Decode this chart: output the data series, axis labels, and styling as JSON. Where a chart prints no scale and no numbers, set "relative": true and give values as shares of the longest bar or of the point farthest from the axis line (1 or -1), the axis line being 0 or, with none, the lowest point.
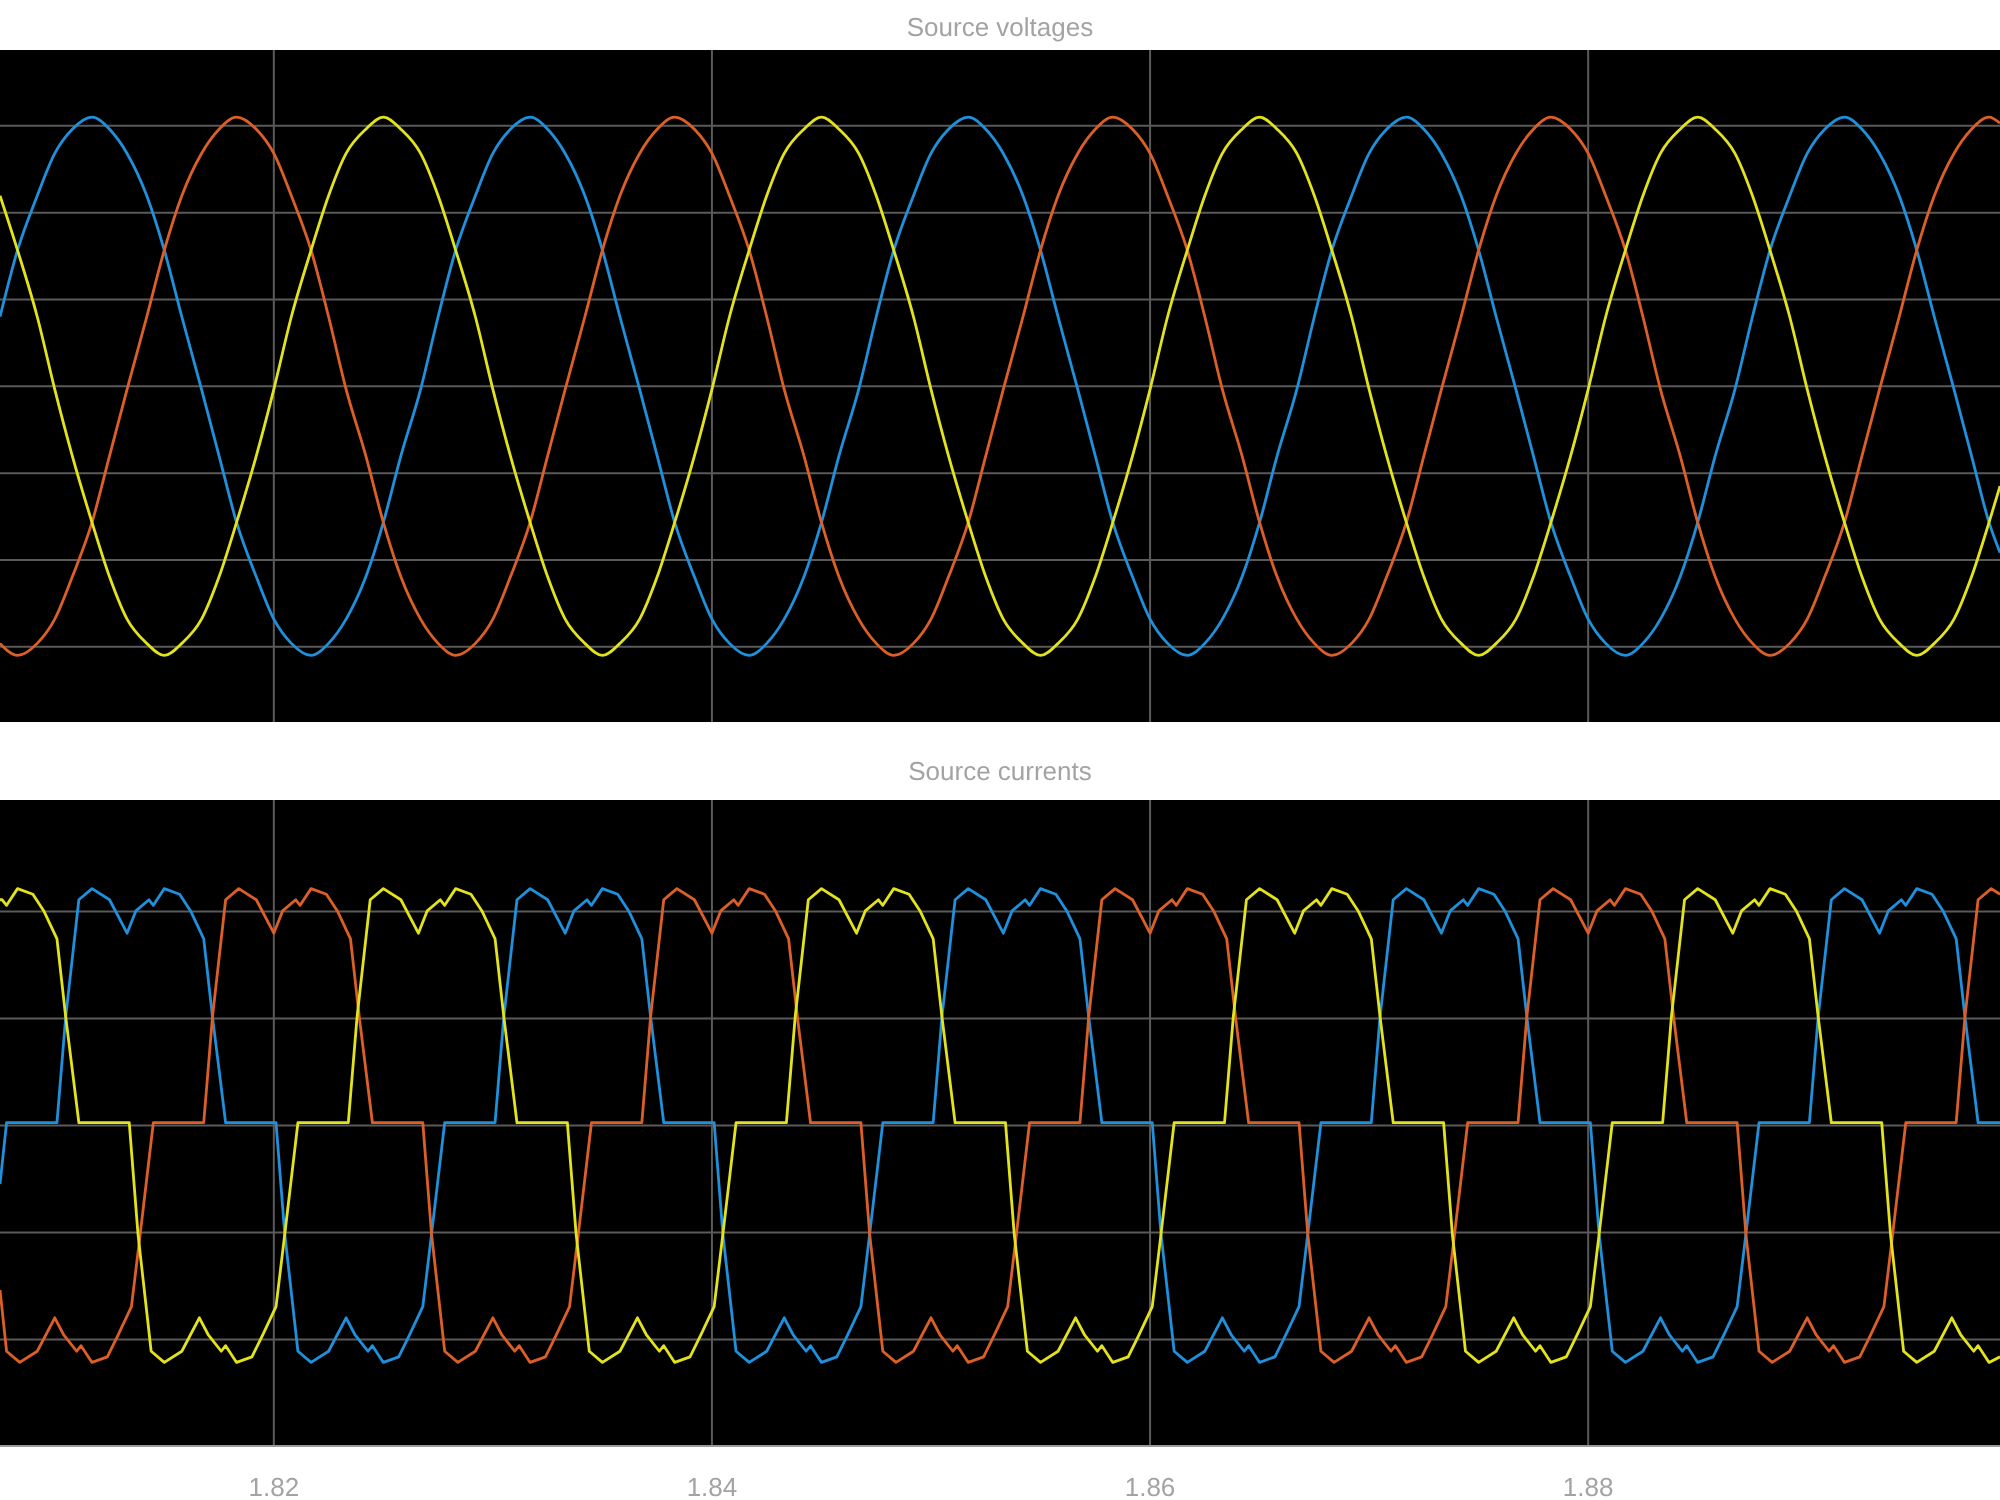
{
  "chart_data": [
    {
      "type": "line",
      "title": "Source voltages",
      "relative": true,
      "xlim": [
        1.8075,
        1.8988
      ],
      "xticks": [
        1.82,
        1.84,
        1.86,
        1.88
      ],
      "tick_labels": false,
      "grid": true,
      "x": [
        1.8075,
        1.8083,
        1.8092,
        1.81,
        1.8108,
        1.8117,
        1.8125,
        1.8133,
        1.8142,
        1.815,
        1.8158,
        1.8167,
        1.8175,
        1.8183,
        1.8192,
        1.82,
        1.8208,
        1.8217,
        1.8225,
        1.8233,
        1.8242,
        1.825,
        1.8258,
        1.8267,
        1.8275,
        1.8283,
        1.8292,
        1.83,
        1.8308,
        1.8317,
        1.8325,
        1.8333,
        1.8342,
        1.835,
        1.8358,
        1.8367,
        1.8375,
        1.8383,
        1.8392,
        1.84,
        1.8408,
        1.8417,
        1.8425,
        1.8433,
        1.8442,
        1.845,
        1.8458,
        1.8467,
        1.8475,
        1.8483,
        1.8492,
        1.85,
        1.8508,
        1.8517,
        1.8525,
        1.8533,
        1.8542,
        1.855,
        1.8558,
        1.8567,
        1.8575,
        1.8583,
        1.8592,
        1.86,
        1.8608,
        1.8617,
        1.8625,
        1.8633,
        1.8642,
        1.865,
        1.8658,
        1.8667,
        1.8675,
        1.8683,
        1.8692,
        1.87,
        1.8708,
        1.8717,
        1.8725,
        1.8733,
        1.8742,
        1.875,
        1.8758,
        1.8767,
        1.8775,
        1.8783,
        1.8792,
        1.88,
        1.8808,
        1.8817,
        1.8825,
        1.8833,
        1.8842,
        1.885,
        1.8858,
        1.8867,
        1.8875,
        1.8883,
        1.8892,
        1.89,
        1.8908,
        1.8917,
        1.8925,
        1.8933,
        1.8942,
        1.895,
        1.8958,
        1.8967,
        1.8975,
        1.8983,
        1.8988
      ],
      "series": [
        {
          "color": "#1e90dc",
          "values": [
            0.67,
            0.78,
            0.87,
            0.94,
            0.98,
            1,
            0.98,
            0.94,
            0.87,
            0.78,
            0.67,
            0.55,
            0.44,
            0.33,
            0.24,
            0.17,
            0.13,
            0.11,
            0.13,
            0.17,
            0.24,
            0.33,
            0.44,
            0.55,
            0.67,
            0.78,
            0.87,
            0.94,
            0.98,
            1,
            0.98,
            0.94,
            0.87,
            0.78,
            0.67,
            0.55,
            0.44,
            0.33,
            0.24,
            0.17,
            0.13,
            0.11,
            0.13,
            0.17,
            0.24,
            0.33,
            0.44,
            0.55,
            0.67,
            0.78,
            0.87,
            0.94,
            0.98,
            1,
            0.98,
            0.94,
            0.87,
            0.78,
            0.67,
            0.55,
            0.44,
            0.33,
            0.24,
            0.17,
            0.13,
            0.11,
            0.13,
            0.17,
            0.24,
            0.33,
            0.44,
            0.55,
            0.67,
            0.78,
            0.87,
            0.94,
            0.98,
            1,
            0.98,
            0.94,
            0.87,
            0.78,
            0.67,
            0.55,
            0.44,
            0.33,
            0.24,
            0.17,
            0.13,
            0.11,
            0.13,
            0.17,
            0.24,
            0.33,
            0.44,
            0.55,
            0.67,
            0.78,
            0.87,
            0.94,
            0.98,
            1,
            0.98,
            0.94,
            0.87,
            0.78,
            0.67,
            0.55,
            0.44,
            0.33,
            0.28
          ]
        },
        {
          "color": "#dd5f28",
          "values": [
            0.13,
            0.11,
            0.13,
            0.17,
            0.24,
            0.33,
            0.44,
            0.55,
            0.67,
            0.78,
            0.87,
            0.94,
            0.98,
            1,
            0.98,
            0.94,
            0.87,
            0.78,
            0.67,
            0.55,
            0.44,
            0.33,
            0.24,
            0.17,
            0.13,
            0.11,
            0.13,
            0.17,
            0.24,
            0.33,
            0.44,
            0.55,
            0.67,
            0.78,
            0.87,
            0.94,
            0.98,
            1,
            0.98,
            0.94,
            0.87,
            0.78,
            0.67,
            0.55,
            0.44,
            0.33,
            0.24,
            0.17,
            0.13,
            0.11,
            0.13,
            0.17,
            0.24,
            0.33,
            0.44,
            0.55,
            0.67,
            0.78,
            0.87,
            0.94,
            0.98,
            1,
            0.98,
            0.94,
            0.87,
            0.78,
            0.67,
            0.55,
            0.44,
            0.33,
            0.24,
            0.17,
            0.13,
            0.11,
            0.13,
            0.17,
            0.24,
            0.33,
            0.44,
            0.55,
            0.67,
            0.78,
            0.87,
            0.94,
            0.98,
            1,
            0.98,
            0.94,
            0.87,
            0.78,
            0.67,
            0.55,
            0.44,
            0.33,
            0.24,
            0.17,
            0.13,
            0.11,
            0.13,
            0.17,
            0.24,
            0.33,
            0.44,
            0.55,
            0.67,
            0.78,
            0.87,
            0.94,
            0.98,
            1,
            0.99
          ]
        },
        {
          "color": "#e3e31c",
          "values": [
            0.87,
            0.78,
            0.67,
            0.55,
            0.44,
            0.33,
            0.24,
            0.17,
            0.13,
            0.11,
            0.13,
            0.17,
            0.24,
            0.33,
            0.44,
            0.55,
            0.67,
            0.78,
            0.87,
            0.94,
            0.98,
            1,
            0.98,
            0.94,
            0.87,
            0.78,
            0.67,
            0.55,
            0.44,
            0.33,
            0.24,
            0.17,
            0.13,
            0.11,
            0.13,
            0.17,
            0.24,
            0.33,
            0.44,
            0.55,
            0.67,
            0.78,
            0.87,
            0.94,
            0.98,
            1,
            0.98,
            0.94,
            0.87,
            0.78,
            0.67,
            0.55,
            0.44,
            0.33,
            0.24,
            0.17,
            0.13,
            0.11,
            0.13,
            0.17,
            0.24,
            0.33,
            0.44,
            0.55,
            0.67,
            0.78,
            0.87,
            0.94,
            0.98,
            1,
            0.98,
            0.94,
            0.87,
            0.78,
            0.67,
            0.55,
            0.44,
            0.33,
            0.24,
            0.17,
            0.13,
            0.11,
            0.13,
            0.17,
            0.24,
            0.33,
            0.44,
            0.55,
            0.67,
            0.78,
            0.87,
            0.94,
            0.98,
            1,
            0.98,
            0.94,
            0.87,
            0.78,
            0.67,
            0.55,
            0.44,
            0.33,
            0.24,
            0.17,
            0.13,
            0.11,
            0.13,
            0.17,
            0.24,
            0.33,
            0.39
          ]
        }
      ]
    },
    {
      "type": "line",
      "title": "Source currents",
      "relative": true,
      "xlim": [
        1.8075,
        1.8988
      ],
      "xticks": [
        1.82,
        1.84,
        1.86,
        1.88
      ],
      "tick_labels": "x",
      "grid": true,
      "series": [
        {
          "color": "#1e90dc",
          "x": [
            1.8075,
            1.8078,
            1.8101,
            1.8105,
            1.8111,
            1.8117,
            1.8125,
            1.8133,
            1.8137,
            1.8143,
            1.8145,
            1.815,
            1.8157,
            1.8162,
            1.8168,
            1.8172,
            1.8178,
            1.8201,
            1.8205,
            1.8211,
            1.8217,
            1.8225,
            1.8233,
            1.8237,
            1.8243,
            1.8245,
            1.825,
            1.8257,
            1.8262,
            1.8268,
            1.8272,
            1.8278,
            1.8301,
            1.8305,
            1.8311,
            1.8317,
            1.8325,
            1.8333,
            1.8337,
            1.8343,
            1.8345,
            1.835,
            1.8357,
            1.8362,
            1.8368,
            1.8372,
            1.8378,
            1.8401,
            1.8405,
            1.8411,
            1.8417,
            1.8425,
            1.8433,
            1.8437,
            1.8443,
            1.8445,
            1.845,
            1.8457,
            1.8462,
            1.8468,
            1.8472,
            1.8478,
            1.8501,
            1.8505,
            1.8511,
            1.8517,
            1.8525,
            1.8533,
            1.8537,
            1.8543,
            1.8545,
            1.855,
            1.8557,
            1.8562,
            1.8568,
            1.8572,
            1.8578,
            1.8601,
            1.8605,
            1.8611,
            1.8617,
            1.8625,
            1.8633,
            1.8637,
            1.8643,
            1.8645,
            1.865,
            1.8657,
            1.8662,
            1.8668,
            1.8672,
            1.8678,
            1.8701,
            1.8705,
            1.8711,
            1.8717,
            1.8725,
            1.8733,
            1.8737,
            1.8743,
            1.8745,
            1.875,
            1.8757,
            1.8762,
            1.8768,
            1.8772,
            1.8778,
            1.8801,
            1.8805,
            1.8811,
            1.8817,
            1.8825,
            1.8833,
            1.8837,
            1.8843,
            1.8845,
            1.885,
            1.8857,
            1.8862,
            1.8868,
            1.8872,
            1.8878,
            1.8901,
            1.8905,
            1.8911,
            1.8917,
            1.8925,
            1.8933,
            1.8937,
            1.8943,
            1.8945,
            1.895,
            1.8957,
            1.8962,
            1.8968,
            1.8972,
            1.8978,
            1.8988
          ],
          "values": [
            0.47,
            0.58,
            0.58,
            0.77,
            0.98,
            1,
            0.98,
            0.92,
            0.96,
            0.98,
            0.97,
            1,
            0.99,
            0.96,
            0.91,
            0.77,
            0.58,
            0.58,
            0.38,
            0.17,
            0.15,
            0.17,
            0.23,
            0.2,
            0.17,
            0.18,
            0.15,
            0.16,
            0.2,
            0.25,
            0.38,
            0.58,
            0.58,
            0.77,
            0.98,
            1,
            0.98,
            0.92,
            0.96,
            0.98,
            0.97,
            1,
            0.99,
            0.96,
            0.91,
            0.77,
            0.58,
            0.58,
            0.38,
            0.17,
            0.15,
            0.17,
            0.23,
            0.2,
            0.17,
            0.18,
            0.15,
            0.16,
            0.2,
            0.25,
            0.38,
            0.58,
            0.58,
            0.77,
            0.98,
            1,
            0.98,
            0.92,
            0.96,
            0.98,
            0.97,
            1,
            0.99,
            0.96,
            0.91,
            0.77,
            0.58,
            0.58,
            0.38,
            0.17,
            0.15,
            0.17,
            0.23,
            0.2,
            0.17,
            0.18,
            0.15,
            0.16,
            0.2,
            0.25,
            0.38,
            0.58,
            0.58,
            0.77,
            0.98,
            1,
            0.98,
            0.92,
            0.96,
            0.98,
            0.97,
            1,
            0.99,
            0.96,
            0.91,
            0.77,
            0.58,
            0.58,
            0.38,
            0.17,
            0.15,
            0.17,
            0.23,
            0.2,
            0.17,
            0.18,
            0.15,
            0.16,
            0.2,
            0.25,
            0.38,
            0.58,
            0.58,
            0.77,
            0.98,
            1,
            0.98,
            0.92,
            0.96,
            0.98,
            0.97,
            1,
            0.99,
            0.96,
            0.91,
            0.77,
            0.58,
            0.58
          ]
        },
        {
          "color": "#dd5f28",
          "x": [
            1.8075,
            1.8078,
            1.8084,
            1.8092,
            1.81,
            1.8104,
            1.811,
            1.8112,
            1.8117,
            1.8124,
            1.8129,
            1.8135,
            1.8139,
            1.8145,
            1.8168,
            1.8172,
            1.8178,
            1.8184,
            1.8192,
            1.82,
            1.8204,
            1.821,
            1.8212,
            1.8217,
            1.8224,
            1.8229,
            1.8235,
            1.8239,
            1.8245,
            1.8268,
            1.8272,
            1.8278,
            1.8284,
            1.8292,
            1.83,
            1.8304,
            1.831,
            1.8312,
            1.8317,
            1.8324,
            1.8329,
            1.8335,
            1.8339,
            1.8345,
            1.8368,
            1.8372,
            1.8378,
            1.8384,
            1.8392,
            1.84,
            1.8404,
            1.841,
            1.8412,
            1.8417,
            1.8424,
            1.8429,
            1.8435,
            1.8439,
            1.8445,
            1.8468,
            1.8472,
            1.8478,
            1.8484,
            1.8492,
            1.85,
            1.8504,
            1.851,
            1.8512,
            1.8517,
            1.8524,
            1.8529,
            1.8535,
            1.8539,
            1.8545,
            1.8568,
            1.8572,
            1.8578,
            1.8584,
            1.8592,
            1.86,
            1.8604,
            1.861,
            1.8612,
            1.8617,
            1.8624,
            1.8629,
            1.8635,
            1.8639,
            1.8645,
            1.8668,
            1.8672,
            1.8678,
            1.8684,
            1.8692,
            1.87,
            1.8704,
            1.871,
            1.8712,
            1.8717,
            1.8724,
            1.8729,
            1.8735,
            1.8739,
            1.8745,
            1.8768,
            1.8772,
            1.8778,
            1.8784,
            1.8792,
            1.88,
            1.8804,
            1.881,
            1.8812,
            1.8817,
            1.8824,
            1.8829,
            1.8835,
            1.8839,
            1.8845,
            1.8868,
            1.8872,
            1.8878,
            1.8884,
            1.8892,
            1.89,
            1.8904,
            1.891,
            1.8912,
            1.8917,
            1.8924,
            1.8929,
            1.8935,
            1.8939,
            1.8945,
            1.8968,
            1.8972,
            1.8978,
            1.8984,
            1.8988
          ],
          "values": [
            0.28,
            0.17,
            0.15,
            0.17,
            0.23,
            0.2,
            0.17,
            0.18,
            0.15,
            0.16,
            0.2,
            0.25,
            0.38,
            0.58,
            0.58,
            0.77,
            0.98,
            1,
            0.98,
            0.92,
            0.96,
            0.98,
            0.97,
            1,
            0.99,
            0.96,
            0.91,
            0.77,
            0.58,
            0.58,
            0.38,
            0.17,
            0.15,
            0.17,
            0.23,
            0.2,
            0.17,
            0.18,
            0.15,
            0.16,
            0.2,
            0.25,
            0.38,
            0.58,
            0.58,
            0.77,
            0.98,
            1,
            0.98,
            0.92,
            0.96,
            0.98,
            0.97,
            1,
            0.99,
            0.96,
            0.91,
            0.77,
            0.58,
            0.58,
            0.38,
            0.17,
            0.15,
            0.17,
            0.23,
            0.2,
            0.17,
            0.18,
            0.15,
            0.16,
            0.2,
            0.25,
            0.38,
            0.58,
            0.58,
            0.77,
            0.98,
            1,
            0.98,
            0.92,
            0.96,
            0.98,
            0.97,
            1,
            0.99,
            0.96,
            0.91,
            0.77,
            0.58,
            0.58,
            0.38,
            0.17,
            0.15,
            0.17,
            0.23,
            0.2,
            0.17,
            0.18,
            0.15,
            0.16,
            0.2,
            0.25,
            0.38,
            0.58,
            0.58,
            0.77,
            0.98,
            1,
            0.98,
            0.92,
            0.96,
            0.98,
            0.97,
            1,
            0.99,
            0.96,
            0.91,
            0.77,
            0.58,
            0.58,
            0.38,
            0.17,
            0.15,
            0.17,
            0.23,
            0.2,
            0.17,
            0.18,
            0.15,
            0.16,
            0.2,
            0.25,
            0.38,
            0.58,
            0.58,
            0.77,
            0.98,
            1,
            0.99
          ]
        },
        {
          "color": "#e3e31c",
          "x": [
            1.8075,
            1.8076,
            1.8078,
            1.8083,
            1.809,
            1.8095,
            1.8101,
            1.8105,
            1.8111,
            1.8134,
            1.8138,
            1.8144,
            1.815,
            1.8158,
            1.8166,
            1.817,
            1.8176,
            1.8178,
            1.8183,
            1.819,
            1.8195,
            1.8201,
            1.8205,
            1.8211,
            1.8234,
            1.8238,
            1.8244,
            1.825,
            1.8258,
            1.8266,
            1.827,
            1.8276,
            1.8278,
            1.8283,
            1.829,
            1.8295,
            1.8301,
            1.8305,
            1.8311,
            1.8334,
            1.8338,
            1.8344,
            1.835,
            1.8358,
            1.8366,
            1.837,
            1.8376,
            1.8378,
            1.8383,
            1.839,
            1.8395,
            1.8401,
            1.8405,
            1.8411,
            1.8434,
            1.8438,
            1.8444,
            1.845,
            1.8458,
            1.8466,
            1.847,
            1.8476,
            1.8478,
            1.8483,
            1.849,
            1.8495,
            1.8501,
            1.8505,
            1.8511,
            1.8534,
            1.8538,
            1.8544,
            1.855,
            1.8558,
            1.8566,
            1.857,
            1.8576,
            1.8578,
            1.8583,
            1.859,
            1.8595,
            1.8601,
            1.8605,
            1.8611,
            1.8634,
            1.8638,
            1.8644,
            1.865,
            1.8658,
            1.8666,
            1.867,
            1.8676,
            1.8678,
            1.8683,
            1.869,
            1.8695,
            1.8701,
            1.8705,
            1.8711,
            1.8734,
            1.8738,
            1.8744,
            1.875,
            1.8758,
            1.8766,
            1.877,
            1.8776,
            1.8778,
            1.8783,
            1.879,
            1.8795,
            1.8801,
            1.8805,
            1.8811,
            1.8834,
            1.8838,
            1.8844,
            1.885,
            1.8858,
            1.8866,
            1.887,
            1.8876,
            1.8878,
            1.8883,
            1.889,
            1.8895,
            1.8901,
            1.8905,
            1.8911,
            1.8934,
            1.8938,
            1.8944,
            1.895,
            1.8958,
            1.8966,
            1.897,
            1.8976,
            1.8978,
            1.8983,
            1.8988
          ],
          "values": [
            0.98,
            0.98,
            0.97,
            1,
            0.99,
            0.96,
            0.91,
            0.77,
            0.58,
            0.58,
            0.38,
            0.17,
            0.15,
            0.17,
            0.23,
            0.2,
            0.17,
            0.18,
            0.15,
            0.16,
            0.2,
            0.25,
            0.38,
            0.58,
            0.58,
            0.77,
            0.98,
            1,
            0.98,
            0.92,
            0.96,
            0.98,
            0.97,
            1,
            0.99,
            0.96,
            0.91,
            0.77,
            0.58,
            0.58,
            0.38,
            0.17,
            0.15,
            0.17,
            0.23,
            0.2,
            0.17,
            0.18,
            0.15,
            0.16,
            0.2,
            0.25,
            0.38,
            0.58,
            0.58,
            0.77,
            0.98,
            1,
            0.98,
            0.92,
            0.96,
            0.98,
            0.97,
            1,
            0.99,
            0.96,
            0.91,
            0.77,
            0.58,
            0.58,
            0.38,
            0.17,
            0.15,
            0.17,
            0.23,
            0.2,
            0.17,
            0.18,
            0.15,
            0.16,
            0.2,
            0.25,
            0.38,
            0.58,
            0.58,
            0.77,
            0.98,
            1,
            0.98,
            0.92,
            0.96,
            0.98,
            0.97,
            1,
            0.99,
            0.96,
            0.91,
            0.77,
            0.58,
            0.58,
            0.38,
            0.17,
            0.15,
            0.17,
            0.23,
            0.2,
            0.17,
            0.18,
            0.15,
            0.16,
            0.2,
            0.25,
            0.38,
            0.58,
            0.58,
            0.77,
            0.98,
            1,
            0.98,
            0.92,
            0.96,
            0.98,
            0.97,
            1,
            0.99,
            0.96,
            0.91,
            0.77,
            0.58,
            0.58,
            0.38,
            0.17,
            0.15,
            0.17,
            0.23,
            0.2,
            0.17,
            0.18,
            0.15,
            0.16
          ]
        }
      ]
    }
  ]
}
